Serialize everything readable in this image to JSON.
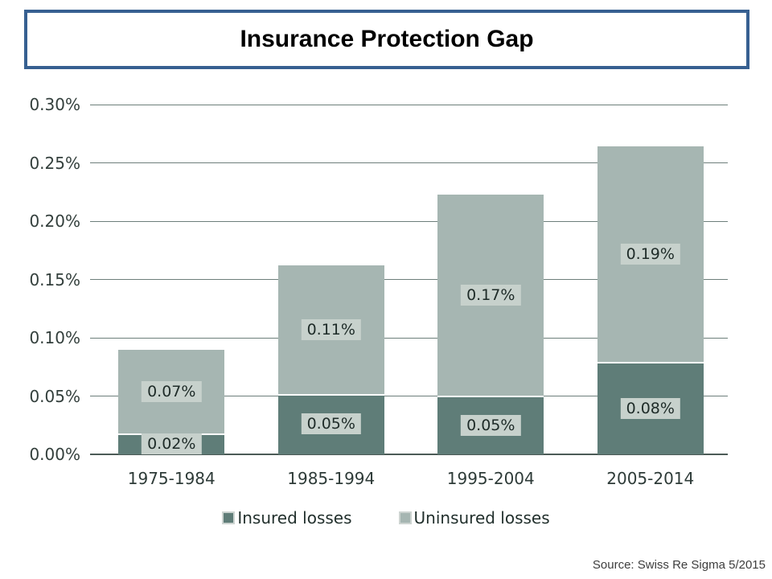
{
  "chart_data": {
    "type": "bar",
    "stacked": true,
    "title": "Insurance Protection Gap",
    "categories": [
      "1975-1984",
      "1985-1994",
      "1995-2004",
      "2005-2014"
    ],
    "series": [
      {
        "name": "Insured losses",
        "color": "#5f7d78",
        "values": [
          0.018,
          0.052,
          0.05,
          0.079
        ],
        "labels": [
          "0.02%",
          "0.05%",
          "0.05%",
          "0.08%"
        ]
      },
      {
        "name": "Uninsured losses",
        "color": "#a6b6b2",
        "values": [
          0.072,
          0.11,
          0.173,
          0.185
        ],
        "labels": [
          "0.07%",
          "0.11%",
          "0.17%",
          "0.19%"
        ]
      }
    ],
    "ylim": [
      0,
      0.3
    ],
    "yticks": {
      "values": [
        0,
        0.05,
        0.1,
        0.15,
        0.2,
        0.25,
        0.3
      ],
      "labels": [
        "0.00%",
        "0.05%",
        "0.10%",
        "0.15%",
        "0.20%",
        "0.25%",
        "0.30%"
      ]
    },
    "grid": true,
    "legend_position": "bottom",
    "colors": {
      "title_border": "#376091",
      "gridline": "#6d7f7b",
      "axis_line": "#4c5b57",
      "data_label_box": "#c7d1cc",
      "legend_swatch_border": "#cdd4d1",
      "tick_text": "#333f3c"
    },
    "source": "Source: Swiss Re Sigma 5/2015"
  }
}
